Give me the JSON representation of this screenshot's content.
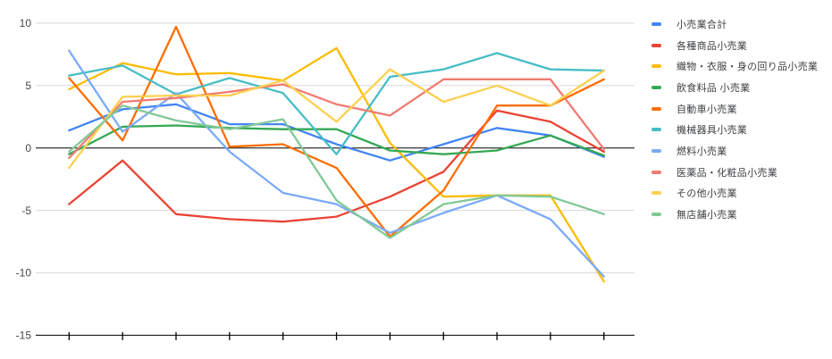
{
  "chart_data": {
    "type": "line",
    "title": "",
    "xlabel": "",
    "ylabel": "",
    "ylim": [
      -15,
      10
    ],
    "yticks": [
      10,
      5,
      0,
      -5,
      -10,
      -15
    ],
    "x_point_count": 11,
    "x_tick_labels": [
      "",
      "",
      "",
      "",
      "",
      "",
      "",
      "",
      "",
      "",
      ""
    ],
    "grid": true,
    "legend_position": "right",
    "axis_line_color": "#000000",
    "gridline_color": "#d9d9d9",
    "y_tick_label_color": "#464646",
    "legend_text_color": "#3c4043",
    "series": [
      {
        "name": "小売業合計",
        "color": "#4285F4",
        "values": [
          1.4,
          3.1,
          3.5,
          1.9,
          1.9,
          0.3,
          -1.0,
          0.3,
          1.6,
          1.0,
          -0.7
        ]
      },
      {
        "name": "各種商品小売業",
        "color": "#EA4335",
        "values": [
          -4.5,
          -1.0,
          -5.3,
          -5.7,
          -5.9,
          -5.5,
          -3.9,
          -1.9,
          3.0,
          2.1,
          -0.3
        ]
      },
      {
        "name": "織物・衣服・身の回り品小売業",
        "color": "#FBBC04",
        "values": [
          4.7,
          6.8,
          5.9,
          6.0,
          5.4,
          8.0,
          0.4,
          -3.9,
          -3.8,
          -3.8,
          -10.7
        ]
      },
      {
        "name": "飲食料品 小売業",
        "color": "#34A853",
        "values": [
          -0.5,
          1.7,
          1.8,
          1.6,
          1.5,
          1.5,
          -0.2,
          -0.5,
          -0.2,
          1.0,
          -0.6
        ]
      },
      {
        "name": "自動車小売業",
        "color": "#FF6D01",
        "values": [
          5.6,
          0.6,
          9.7,
          0.1,
          0.3,
          -1.6,
          -7.1,
          -3.4,
          3.4,
          3.4,
          5.5
        ]
      },
      {
        "name": "機械器具小売業",
        "color": "#46BDC6",
        "values": [
          5.8,
          6.6,
          4.3,
          5.6,
          4.4,
          -0.5,
          5.7,
          6.3,
          7.6,
          6.3,
          6.2
        ]
      },
      {
        "name": "燃料小売業",
        "color": "#7BAAF7",
        "values": [
          7.8,
          1.3,
          4.4,
          -0.3,
          -3.6,
          -4.5,
          -6.8,
          -5.2,
          -3.8,
          -5.7,
          -10.3
        ]
      },
      {
        "name": "医薬品・化粧品小売業",
        "color": "#F07B72",
        "values": [
          -0.8,
          3.7,
          4.0,
          4.5,
          5.1,
          3.5,
          2.6,
          5.5,
          5.5,
          5.5,
          -0.1
        ]
      },
      {
        "name": "その他小売業",
        "color": "#FCD04F",
        "values": [
          -1.6,
          4.1,
          4.2,
          4.2,
          5.4,
          2.1,
          6.3,
          3.7,
          5.0,
          3.4,
          6.2
        ]
      },
      {
        "name": "無店舗小売業",
        "color": "#81C995",
        "values": [
          -0.3,
          3.4,
          2.2,
          1.5,
          2.3,
          -4.2,
          -7.2,
          -4.5,
          -3.8,
          -3.9,
          -5.3
        ]
      }
    ]
  }
}
